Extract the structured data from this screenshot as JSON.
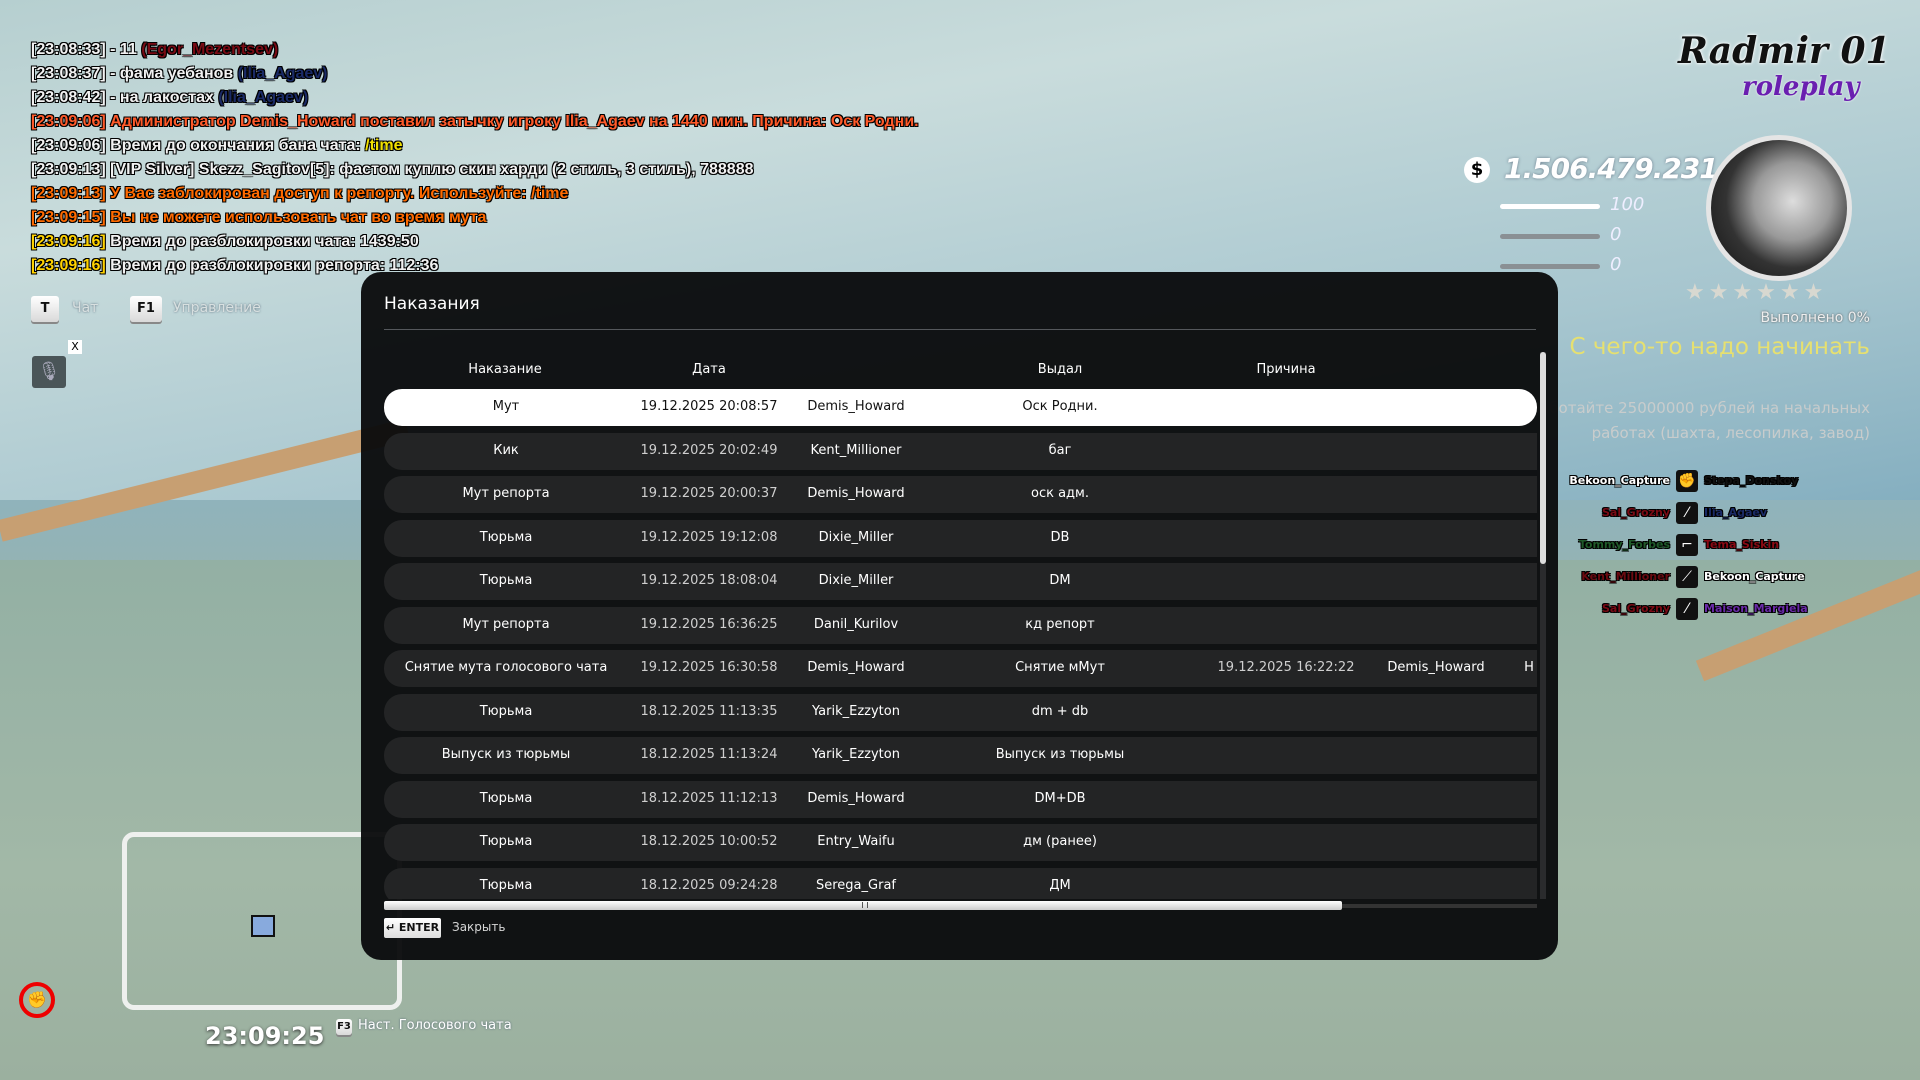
{
  "chat": [
    {
      "time": "[23:08:33]",
      "text": " - 11 ",
      "name": "(Egor_Mezentsev)",
      "cls": "w",
      "ncls": "n1"
    },
    {
      "time": "[23:08:37]",
      "text": " - фама уебанов ",
      "name": "(Ilia_Agaev)",
      "cls": "w",
      "ncls": "n2"
    },
    {
      "time": "[23:08:42]",
      "text": " - на лакостах ",
      "name": "(Ilia_Agaev)",
      "cls": "w",
      "ncls": "n2"
    },
    {
      "time": "[23:09:06]",
      "text": " Администратор Demis_Howard поставил затычку игроку Ilia_Agaev на 1440 мин. Причина: Оск Родни.",
      "name": "",
      "cls": "r",
      "ncls": ""
    },
    {
      "time": "[23:09:06]",
      "text": " Время до окончания бана чата: ",
      "name": "/time",
      "cls": "w",
      "ncls": "y"
    },
    {
      "time": "[23:09:13]",
      "text": " [VIP Silver] Skezz_Sagitov[5]: фастом куплю скин харди (2 стиль, 3 стиль), 788888",
      "name": "",
      "cls": "w",
      "ncls": ""
    },
    {
      "time": "[23:09:13]",
      "text": " У Вас заблокирован доступ к репорту. Используйте: /time",
      "name": "",
      "cls": "o",
      "ncls": ""
    },
    {
      "time": "[23:09:15]",
      "text": " Вы не можете использовать чат во время мута",
      "name": "",
      "cls": "o",
      "ncls": ""
    },
    {
      "time": "[23:09:16]",
      "text": " Время до разблокировки чата: 1439:50",
      "name": "",
      "cls": "w",
      "ncls": "",
      "tcls": "gold"
    },
    {
      "time": "[23:09:16]",
      "text": " Время до разблокировки репорта: 112:36",
      "name": "",
      "cls": "w",
      "ncls": "",
      "tcls": "gold"
    }
  ],
  "hud": {
    "chat_key": "T",
    "chat_label": "Чат",
    "menu_key": "F1",
    "menu_label": "Управление",
    "mic_badge": "X",
    "clock": "23:09:25",
    "voice_key": "F3",
    "voice_label": "Наст. Голосового чата",
    "money": "1.506.479.231",
    "money_icon": "$",
    "health": "100",
    "armor": "0",
    "hunger": "0",
    "health_level": 100,
    "armor_level": 0,
    "hunger_level": 0,
    "stars_filled": 0,
    "stars_total": 6,
    "quest_progress": "Выполнено 0%",
    "quest_title": "С чего-то надо начинать",
    "quest_desc_1": "Заработайте 25000000 рублей на начальных",
    "quest_desc_2": "работах (шахта, лесопилка, завод)",
    "logo_line1": "Radmir 01",
    "logo_line2": "roleplay"
  },
  "killfeed": [
    {
      "killer": "Bekoon_Capture",
      "kcolor": "#ffffff",
      "weapon": "fist-icon",
      "wglyph": "✊",
      "victim": "Stepa_Donskoy",
      "vcolor": "#111111"
    },
    {
      "killer": "Sal_Grozny",
      "kcolor": "#7a0a14",
      "weapon": "shotgun-icon",
      "wglyph": "⁄",
      "victim": "Ilia_Agaev",
      "vcolor": "#1a2a66"
    },
    {
      "killer": "Tommy_Forbes",
      "kcolor": "#1f5a2a",
      "weapon": "pistol-icon",
      "wglyph": "⌐",
      "victim": "Tema_Siskin",
      "vcolor": "#8a0a14"
    },
    {
      "killer": "Kent_Millioner",
      "kcolor": "#6a0a10",
      "weapon": "rifle-icon",
      "wglyph": "⟋",
      "victim": "Bekoon_Capture",
      "vcolor": "#ffffff"
    },
    {
      "killer": "Sal_Grozny",
      "kcolor": "#7a0a14",
      "weapon": "shotgun-icon",
      "wglyph": "⁄",
      "victim": "Maison_Margiela",
      "vcolor": "#6a2aa8"
    }
  ],
  "modal": {
    "title": "Наказания",
    "headers": [
      "Наказание",
      "Дата",
      "Выдал",
      "Причина"
    ],
    "enter_key": "↵ ENTER",
    "close_label": "Закрыть",
    "rows": [
      {
        "type": "Мут",
        "date": "19.12.2025 20:08:57",
        "admin": "Demis_Howard",
        "reason": "Оск Родни.",
        "selected": true
      },
      {
        "type": "Кик",
        "date": "19.12.2025 20:02:49",
        "admin": "Kent_Millioner",
        "reason": "баг"
      },
      {
        "type": "Мут репорта",
        "date": "19.12.2025 20:00:37",
        "admin": "Demis_Howard",
        "reason": "оск адм."
      },
      {
        "type": "Тюрьма",
        "date": "19.12.2025 19:12:08",
        "admin": "Dixie_Miller",
        "reason": "DB"
      },
      {
        "type": "Тюрьма",
        "date": "19.12.2025 18:08:04",
        "admin": "Dixie_Miller",
        "reason": "DM"
      },
      {
        "type": "Мут репорта",
        "date": "19.12.2025 16:36:25",
        "admin": "Danil_Kurilov",
        "reason": "кд репорт"
      },
      {
        "type": "Снятие мута голосового чата",
        "date": "19.12.2025 16:30:58",
        "admin": "Demis_Howard",
        "reason": "Снятие мМут",
        "extra_date": "19.12.2025 16:22:22",
        "extra_admin": "Demis_Howard",
        "extra_more": "Н"
      },
      {
        "type": "Тюрьма",
        "date": "18.12.2025 11:13:35",
        "admin": "Yarik_Ezzyton",
        "reason": "dm + db"
      },
      {
        "type": "Выпуск из тюрьмы",
        "date": "18.12.2025 11:13:24",
        "admin": "Yarik_Ezzyton",
        "reason": "Выпуск из тюрьмы"
      },
      {
        "type": "Тюрьма",
        "date": "18.12.2025 11:12:13",
        "admin": "Demis_Howard",
        "reason": "DM+DB"
      },
      {
        "type": "Тюрьма",
        "date": "18.12.2025 10:00:52",
        "admin": "Entry_Waifu",
        "reason": "дм (ранее)"
      },
      {
        "type": "Тюрьма",
        "date": "18.12.2025 09:24:28",
        "admin": "Serega_Graf",
        "reason": "ДМ"
      }
    ]
  }
}
